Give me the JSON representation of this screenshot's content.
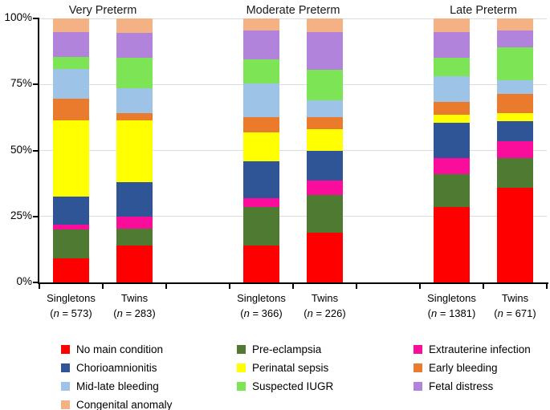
{
  "chart_data": {
    "type": "bar",
    "subtype": "stacked-100-percent-column",
    "group_titles": [
      "Very Preterm",
      "Moderate Preterm",
      "Late Preterm"
    ],
    "y_axis": {
      "ticks": [
        "0%",
        "25%",
        "50%",
        "75%",
        "100%"
      ],
      "ylim": [
        0,
        100
      ],
      "grid": true
    },
    "conditions": [
      {
        "name": "No main condition",
        "color": "#ff0000"
      },
      {
        "name": "Pre-eclampsia",
        "color": "#4e7b31"
      },
      {
        "name": "Extrauterine infection",
        "color": "#fb0d9c"
      },
      {
        "name": "Chorioamnionitis",
        "color": "#2f5597"
      },
      {
        "name": "Perinatal sepsis",
        "color": "#ffff00"
      },
      {
        "name": "Early bleeding",
        "color": "#ea7a2c"
      },
      {
        "name": "Mid-late bleeding",
        "color": "#9dc3e6"
      },
      {
        "name": "Suspected IUGR",
        "color": "#7ce455"
      },
      {
        "name": "Fetal distress",
        "color": "#b183db"
      },
      {
        "name": "Congenital anomaly",
        "color": "#f4b183"
      }
    ],
    "stacking_note": "values are percent heights, listed bottom-to-top in the order of conditions[]",
    "bars": [
      {
        "group": "Very Preterm",
        "label": "Singletons",
        "n": "573",
        "slot": 0,
        "values": [
          9,
          11,
          2,
          10.5,
          29,
          8,
          11.5,
          4.5,
          9.5,
          5
        ]
      },
      {
        "group": "Very Preterm",
        "label": "Twins",
        "n": "283",
        "slot": 1,
        "values": [
          14,
          6.5,
          4.5,
          13,
          23.5,
          2.5,
          9.5,
          11.5,
          9.5,
          5.5
        ]
      },
      {
        "group": "Moderate Preterm",
        "label": "Singletons",
        "n": "366",
        "slot": 3,
        "values": [
          14,
          14.5,
          3.5,
          14,
          11,
          5.5,
          13,
          9,
          11,
          4.5
        ]
      },
      {
        "group": "Moderate Preterm",
        "label": "Twins",
        "n": "226",
        "slot": 4,
        "values": [
          19,
          14,
          5.5,
          11.5,
          8,
          4.5,
          6.5,
          11.5,
          14.5,
          5
        ]
      },
      {
        "group": "Late Preterm",
        "label": "Singletons",
        "n": "1381",
        "slot": 6,
        "values": [
          28.5,
          12.5,
          6,
          13.5,
          3,
          5,
          9.5,
          7,
          10,
          5
        ]
      },
      {
        "group": "Late Preterm",
        "label": "Twins",
        "n": "671",
        "slot": 7,
        "values": [
          36,
          11,
          6.5,
          7.5,
          3,
          7.5,
          5,
          12.5,
          6.5,
          4.5
        ]
      }
    ],
    "n_label_format": "(n = {n})",
    "legend": {
      "position": "bottom",
      "columns": [
        [
          "No main condition",
          "Chorioamnionitis",
          "Mid-late bleeding",
          "Congenital anomaly"
        ],
        [
          "Pre-eclampsia",
          "Perinatal sepsis",
          "Suspected IUGR"
        ],
        [
          "Extrauterine infection",
          "Early bleeding",
          "Fetal distress"
        ]
      ]
    },
    "colors": {
      "grid": "#dcdcdc",
      "axis": "#000000",
      "background": "#ffffff"
    }
  }
}
